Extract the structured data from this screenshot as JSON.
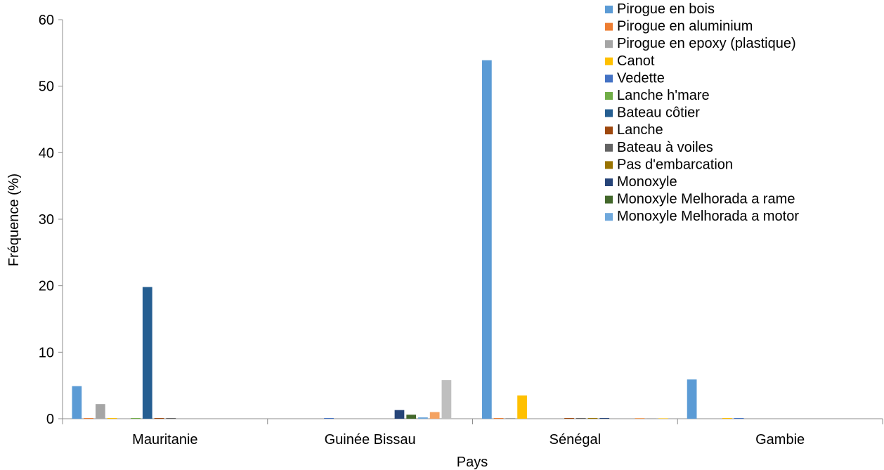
{
  "chart_data": {
    "type": "bar",
    "title": "",
    "xlabel": "Pays",
    "ylabel": "Fréquence  (%)",
    "ylim": [
      0,
      60
    ],
    "yticks": [
      0,
      10,
      20,
      30,
      40,
      50,
      60
    ],
    "grid": false,
    "legend_position": "top-right",
    "categories": [
      "Mauritanie",
      "Guinée Bissau",
      "Sénégal",
      "Gambie"
    ],
    "series": [
      {
        "name": "Pirogue en bois",
        "color": "#5B9BD5",
        "values": [
          4.9,
          0,
          53.9,
          5.9
        ]
      },
      {
        "name": "Pirogue en aluminium",
        "color": "#ED7D31",
        "values": [
          0.1,
          0,
          0.1,
          0
        ]
      },
      {
        "name": "Pirogue en epoxy (plastique)",
        "color": "#A5A5A5",
        "values": [
          2.2,
          0,
          0.1,
          0
        ]
      },
      {
        "name": "Canot",
        "color": "#FFC000",
        "values": [
          0.1,
          0,
          3.5,
          0.1
        ]
      },
      {
        "name": "Vedette",
        "color": "#4472C4",
        "values": [
          0,
          0.1,
          0,
          0.1
        ]
      },
      {
        "name": "Lanche h'mare",
        "color": "#70AD47",
        "values": [
          0.1,
          0,
          0,
          0
        ]
      },
      {
        "name": "Bateau côtier",
        "color": "#255E91",
        "values": [
          19.8,
          0,
          0,
          0
        ]
      },
      {
        "name": "Lanche",
        "color": "#9E480E",
        "values": [
          0.1,
          0,
          0.1,
          0
        ]
      },
      {
        "name": "Bateau à voiles",
        "color": "#636363",
        "values": [
          0.1,
          0,
          0.1,
          0
        ]
      },
      {
        "name": "Pas d'embarcation",
        "color": "#997300",
        "values": [
          0,
          0,
          0.1,
          0
        ]
      },
      {
        "name": "Monoxyle",
        "color": "#264478",
        "values": [
          0,
          1.3,
          0.1,
          0
        ]
      },
      {
        "name": "Monoxyle Melhorada a rame",
        "color": "#43682B",
        "values": [
          0,
          0.6,
          0,
          0
        ]
      },
      {
        "name": "Monoxyle Melhorada a motor",
        "color": "#6FA8DC",
        "values": [
          0,
          0.2,
          0,
          0
        ]
      },
      {
        "name": "",
        "color": "#F4A261",
        "values": [
          0,
          1.0,
          0.1,
          0
        ]
      },
      {
        "name": "",
        "color": "#BFBFBF",
        "values": [
          0,
          5.8,
          0.1,
          0
        ]
      },
      {
        "name": "",
        "color": "#FFD966",
        "values": [
          0,
          0,
          0.1,
          0
        ]
      }
    ]
  }
}
